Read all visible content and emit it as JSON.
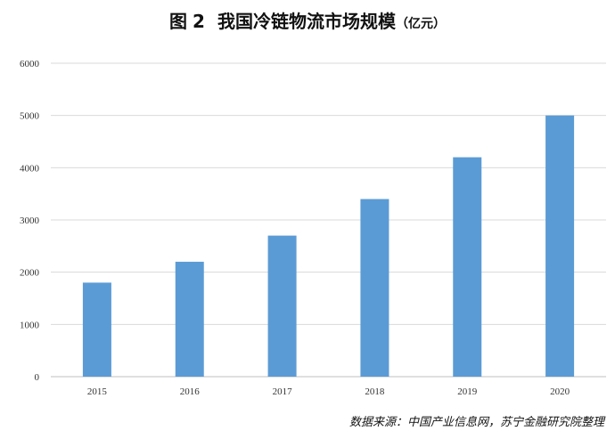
{
  "figure": {
    "label": "图",
    "number": "2",
    "title": "我国冷链物流市场规模",
    "unit": "（亿元）"
  },
  "source_note": "数据来源：中国产业信息网，苏宁金融研究院整理",
  "colors": {
    "bar": "#5b9bd5",
    "grid": "#d9d9d9",
    "axis": "#bfbfbf"
  },
  "chart_data": {
    "type": "bar",
    "title": "我国冷链物流市场规模（亿元）",
    "categories": [
      "2015",
      "2016",
      "2017",
      "2018",
      "2019",
      "2020"
    ],
    "values": [
      1800,
      2200,
      2700,
      3400,
      4200,
      5000
    ],
    "ylim": [
      0,
      6000
    ],
    "yticks": [
      "0",
      "1000",
      "2000",
      "3000",
      "4000",
      "5000",
      "6000"
    ],
    "grid": true,
    "legend": "none"
  }
}
